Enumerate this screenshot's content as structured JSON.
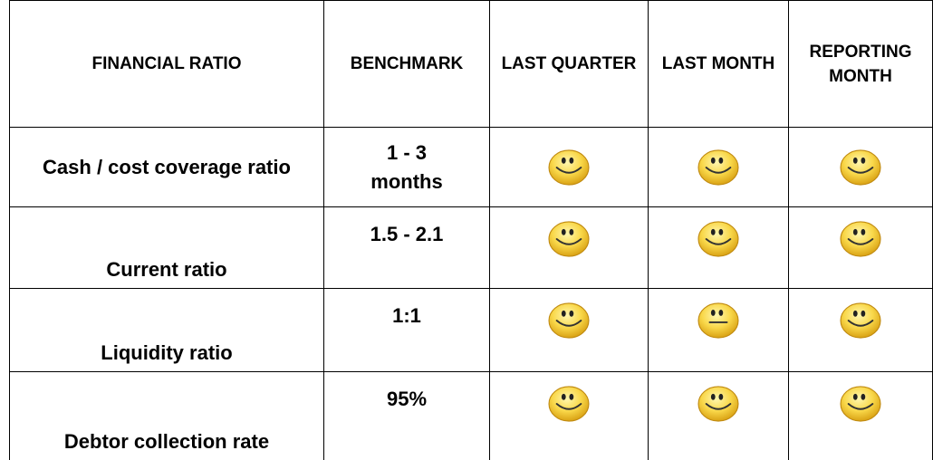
{
  "table": {
    "header": [
      "FINANCIAL RATIO",
      "BENCHMARK",
      "LAST QUARTER",
      "LAST MONTH",
      "REPORTING MONTH"
    ],
    "rows": [
      [
        "Cash / cost coverage ratio",
        "1 - 3 months"
      ],
      [
        "Current ratio",
        "1.5 - 2.1"
      ],
      [
        "Liquidity ratio",
        "1:1"
      ],
      [
        "Debtor collection rate",
        "95%"
      ]
    ]
  }
}
